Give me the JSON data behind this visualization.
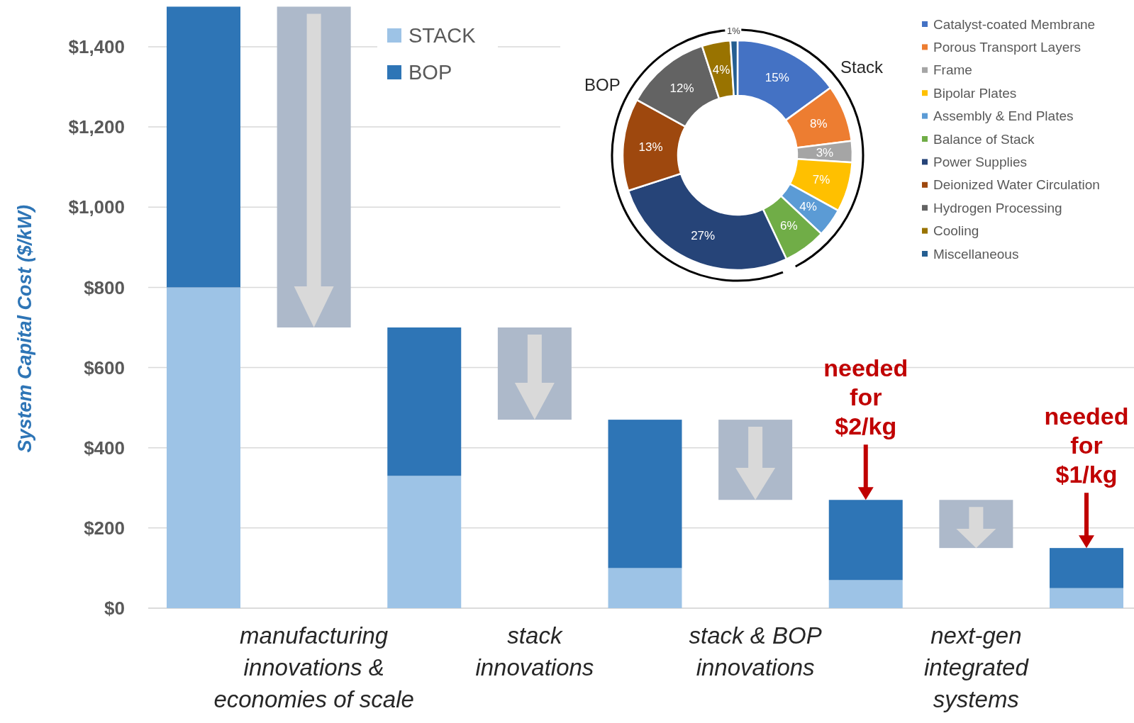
{
  "chart_data": [
    {
      "type": "bar",
      "ylabel": "System Capital Cost ($/kW)",
      "stacked": true,
      "grid": "y",
      "legend": "top left",
      "categories": [
        null,
        "manufacturing\ninnovations &\neconomies of scale",
        null,
        "stack\ninnovations",
        null,
        "stack & BOP\ninnovations",
        null,
        "next-gen\nintegrated\nsystems",
        null
      ],
      "series": [
        {
          "name": "STACK",
          "color": "#9dc3e6",
          "values": [
            800,
            null,
            330,
            null,
            100,
            null,
            70,
            null,
            50
          ]
        },
        {
          "name": "BOP",
          "color": "#2e75b6",
          "values": [
            700,
            null,
            370,
            null,
            370,
            null,
            200,
            null,
            100
          ]
        },
        {
          "color": "#adb9ca",
          "values": [
            null,
            800,
            null,
            230,
            null,
            200,
            null,
            120,
            null
          ],
          "base": [
            null,
            700,
            null,
            470,
            null,
            270,
            null,
            150,
            null
          ]
        }
      ],
      "ylim": [
        0,
        1500
      ],
      "yticks": [
        {
          "value": 0,
          "label": "$0"
        },
        {
          "value": 200,
          "label": "$200"
        },
        {
          "value": 400,
          "label": "$400"
        },
        {
          "value": 600,
          "label": "$600"
        },
        {
          "value": 800,
          "label": "$800"
        },
        {
          "value": 1000,
          "label": "$1,000"
        },
        {
          "value": 1200,
          "label": "$1,200"
        },
        {
          "value": 1400,
          "label": "$1,400"
        }
      ],
      "annotations": [
        {
          "text": "needed\nfor\n$2/kg",
          "y": 270
        },
        {
          "text": "needed\nfor\n$1/kg",
          "y": 150
        }
      ]
    },
    {
      "type": "donut",
      "legend": "right",
      "categories": [
        "Catalyst-coated Membrane",
        "Porous Transport Layers",
        "Frame",
        "Bipolar Plates",
        "Assembly & End Plates",
        "Balance of Stack",
        "Power Supplies",
        "Deionized Water Circulation",
        "Hydrogen Processing",
        "Cooling",
        "Miscellaneous"
      ],
      "values": [
        15,
        8,
        3,
        7,
        4,
        6,
        27,
        13,
        12,
        4,
        1
      ],
      "value_labels": [
        "15%",
        "8%",
        "3%",
        "7%",
        "4%",
        "6%",
        "27%",
        "13%",
        "12%",
        "4%",
        "1%"
      ],
      "colors": [
        "#4472c4",
        "#ed7d31",
        "#a5a5a5",
        "#ffc000",
        "#5b9bd5",
        "#70ad47",
        "#264478",
        "#9e480e",
        "#636363",
        "#997300",
        "#255e91"
      ],
      "annotations": [
        "Stack",
        "BOP"
      ]
    }
  ]
}
